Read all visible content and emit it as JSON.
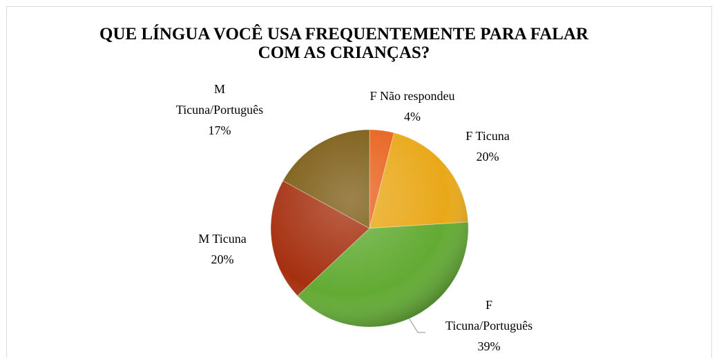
{
  "chart_data": {
    "type": "pie",
    "title": "QUE LÍNGUA VOCÊ USA FREQUENTEMENTE PARA FALAR COM AS CRIANÇAS?",
    "categories": [
      "F Não respondeu",
      "F Ticuna",
      "F Ticuna/Português",
      "M Ticuna",
      "M Ticuna/Português"
    ],
    "values": [
      4,
      20,
      39,
      20,
      17
    ],
    "value_labels": [
      "4%",
      "20%",
      "39%",
      "20%",
      "17%"
    ],
    "colors": [
      "#e8611c",
      "#e9a818",
      "#62ab33",
      "#a5300f",
      "#7b5a12"
    ]
  }
}
